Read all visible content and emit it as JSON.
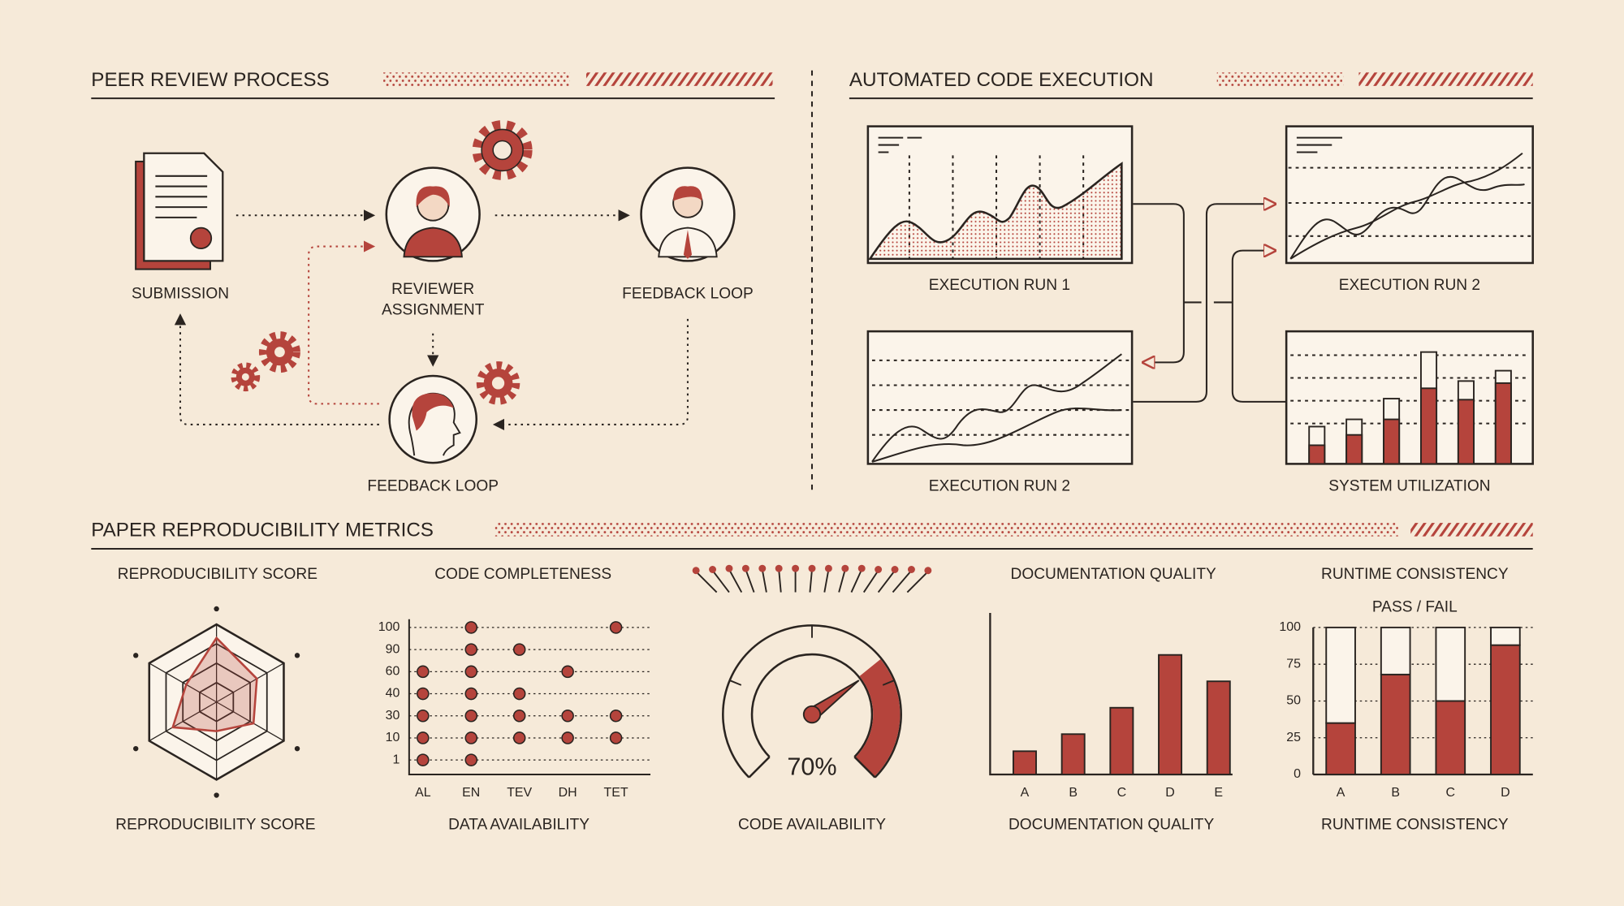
{
  "peer_review": {
    "title": "PEER REVIEW PROCESS",
    "nodes": [
      {
        "label": "SUBMISSION"
      },
      {
        "label": "REVIEWER ASSIGNMENT"
      },
      {
        "label": "FEEDBACK LOOP"
      },
      {
        "label": "FEEDBACK LOOP"
      }
    ]
  },
  "code_execution": {
    "title": "AUTOMATED CODE EXECUTION",
    "panels": [
      "EXECUTION RUN 1",
      "EXECUTION RUN 2",
      "EXECUTION RUN 2",
      "SYSTEM UTILIZATION"
    ]
  },
  "metrics": {
    "title": "PAPER REPRODUCIBILITY METRICS"
  },
  "chart_data": [
    {
      "type": "radar",
      "title": "REPRODUCIBILITY SCORE",
      "xlabel": "REPRODUCIBILITY SCORE",
      "values": [
        3.3,
        2.4,
        2.2,
        1.5,
        2.6,
        1.8
      ],
      "rlim": [
        0,
        4
      ],
      "color": "#b5443c"
    },
    {
      "type": "dot",
      "title": "CODE COMPLETENESS",
      "xlabel": "DATA AVAILABILITY",
      "categories": [
        "AL",
        "EN",
        "TEV",
        "DH",
        "TET"
      ],
      "y_categories": [
        100,
        90,
        60,
        40,
        30,
        10,
        1
      ],
      "values": [
        [
          60,
          40,
          30,
          10,
          1
        ],
        [
          100,
          90,
          60,
          40,
          30,
          10,
          1
        ],
        [
          90,
          40,
          30,
          10
        ],
        [
          60,
          30,
          10
        ],
        [
          100,
          30,
          10
        ]
      ],
      "color": "#b5443c"
    },
    {
      "type": "gauge",
      "xlabel": "CODE AVAILABILITY",
      "value": 70,
      "value_label": "70%",
      "range": [
        0,
        100
      ],
      "color": "#b5443c"
    },
    {
      "type": "bar",
      "title": "DOCUMENTATION QUALITY",
      "xlabel": "DOCUMENTATION QUALITY",
      "categories": [
        "A",
        "B",
        "C",
        "D",
        "E"
      ],
      "values": [
        15,
        26,
        43,
        77,
        60
      ],
      "ylim": [
        0,
        100
      ],
      "color": "#b5443c"
    },
    {
      "type": "stacked_bar",
      "title": "RUNTIME CONSISTENCY",
      "subtitle": "PASS / FAIL",
      "xlabel": "RUNTIME CONSISTENCY",
      "categories": [
        "A",
        "B",
        "C",
        "D"
      ],
      "series": [
        {
          "color": "#b5443c",
          "values": [
            35,
            68,
            50,
            88
          ]
        },
        {
          "color": "#fbf4ea",
          "values": [
            65,
            32,
            50,
            12
          ]
        }
      ],
      "ylim": [
        0,
        100
      ],
      "yticks": [
        0,
        25,
        50,
        75,
        100
      ],
      "grid": true
    }
  ]
}
